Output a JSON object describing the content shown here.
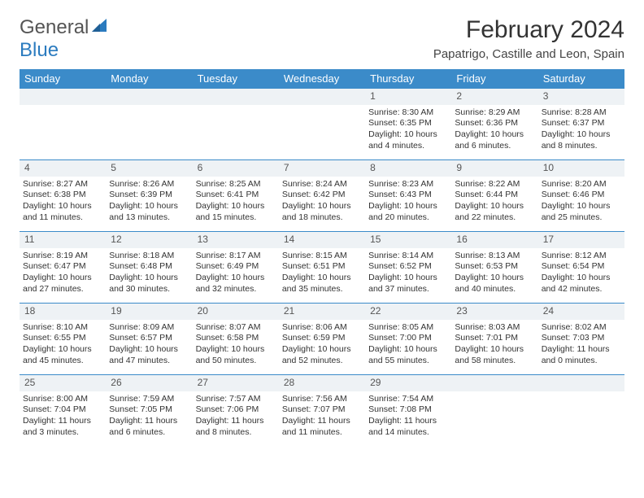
{
  "brand": {
    "name_part1": "General",
    "name_part2": "Blue"
  },
  "title": "February 2024",
  "location": "Papatrigo, Castille and Leon, Spain",
  "colors": {
    "header_bg": "#3b8bc9",
    "header_text": "#ffffff",
    "daynum_bg": "#eef2f5",
    "rule": "#3b8bc9",
    "body_text": "#333333",
    "brand_blue": "#2b7bbf",
    "brand_gray": "#555555",
    "page_bg": "#ffffff"
  },
  "weekdays": [
    "Sunday",
    "Monday",
    "Tuesday",
    "Wednesday",
    "Thursday",
    "Friday",
    "Saturday"
  ],
  "weeks": [
    [
      null,
      null,
      null,
      null,
      {
        "n": "1",
        "sunrise": "8:30 AM",
        "sunset": "6:35 PM",
        "dlh": "10",
        "dlm": "4"
      },
      {
        "n": "2",
        "sunrise": "8:29 AM",
        "sunset": "6:36 PM",
        "dlh": "10",
        "dlm": "6"
      },
      {
        "n": "3",
        "sunrise": "8:28 AM",
        "sunset": "6:37 PM",
        "dlh": "10",
        "dlm": "8"
      }
    ],
    [
      {
        "n": "4",
        "sunrise": "8:27 AM",
        "sunset": "6:38 PM",
        "dlh": "10",
        "dlm": "11"
      },
      {
        "n": "5",
        "sunrise": "8:26 AM",
        "sunset": "6:39 PM",
        "dlh": "10",
        "dlm": "13"
      },
      {
        "n": "6",
        "sunrise": "8:25 AM",
        "sunset": "6:41 PM",
        "dlh": "10",
        "dlm": "15"
      },
      {
        "n": "7",
        "sunrise": "8:24 AM",
        "sunset": "6:42 PM",
        "dlh": "10",
        "dlm": "18"
      },
      {
        "n": "8",
        "sunrise": "8:23 AM",
        "sunset": "6:43 PM",
        "dlh": "10",
        "dlm": "20"
      },
      {
        "n": "9",
        "sunrise": "8:22 AM",
        "sunset": "6:44 PM",
        "dlh": "10",
        "dlm": "22"
      },
      {
        "n": "10",
        "sunrise": "8:20 AM",
        "sunset": "6:46 PM",
        "dlh": "10",
        "dlm": "25"
      }
    ],
    [
      {
        "n": "11",
        "sunrise": "8:19 AM",
        "sunset": "6:47 PM",
        "dlh": "10",
        "dlm": "27"
      },
      {
        "n": "12",
        "sunrise": "8:18 AM",
        "sunset": "6:48 PM",
        "dlh": "10",
        "dlm": "30"
      },
      {
        "n": "13",
        "sunrise": "8:17 AM",
        "sunset": "6:49 PM",
        "dlh": "10",
        "dlm": "32"
      },
      {
        "n": "14",
        "sunrise": "8:15 AM",
        "sunset": "6:51 PM",
        "dlh": "10",
        "dlm": "35"
      },
      {
        "n": "15",
        "sunrise": "8:14 AM",
        "sunset": "6:52 PM",
        "dlh": "10",
        "dlm": "37"
      },
      {
        "n": "16",
        "sunrise": "8:13 AM",
        "sunset": "6:53 PM",
        "dlh": "10",
        "dlm": "40"
      },
      {
        "n": "17",
        "sunrise": "8:12 AM",
        "sunset": "6:54 PM",
        "dlh": "10",
        "dlm": "42"
      }
    ],
    [
      {
        "n": "18",
        "sunrise": "8:10 AM",
        "sunset": "6:55 PM",
        "dlh": "10",
        "dlm": "45"
      },
      {
        "n": "19",
        "sunrise": "8:09 AM",
        "sunset": "6:57 PM",
        "dlh": "10",
        "dlm": "47"
      },
      {
        "n": "20",
        "sunrise": "8:07 AM",
        "sunset": "6:58 PM",
        "dlh": "10",
        "dlm": "50"
      },
      {
        "n": "21",
        "sunrise": "8:06 AM",
        "sunset": "6:59 PM",
        "dlh": "10",
        "dlm": "52"
      },
      {
        "n": "22",
        "sunrise": "8:05 AM",
        "sunset": "7:00 PM",
        "dlh": "10",
        "dlm": "55"
      },
      {
        "n": "23",
        "sunrise": "8:03 AM",
        "sunset": "7:01 PM",
        "dlh": "10",
        "dlm": "58"
      },
      {
        "n": "24",
        "sunrise": "8:02 AM",
        "sunset": "7:03 PM",
        "dlh": "11",
        "dlm": "0"
      }
    ],
    [
      {
        "n": "25",
        "sunrise": "8:00 AM",
        "sunset": "7:04 PM",
        "dlh": "11",
        "dlm": "3"
      },
      {
        "n": "26",
        "sunrise": "7:59 AM",
        "sunset": "7:05 PM",
        "dlh": "11",
        "dlm": "6"
      },
      {
        "n": "27",
        "sunrise": "7:57 AM",
        "sunset": "7:06 PM",
        "dlh": "11",
        "dlm": "8"
      },
      {
        "n": "28",
        "sunrise": "7:56 AM",
        "sunset": "7:07 PM",
        "dlh": "11",
        "dlm": "11"
      },
      {
        "n": "29",
        "sunrise": "7:54 AM",
        "sunset": "7:08 PM",
        "dlh": "11",
        "dlm": "14"
      },
      null,
      null
    ]
  ],
  "labels": {
    "sunrise": "Sunrise:",
    "sunset": "Sunset:",
    "daylight": "Daylight:",
    "hours": "hours",
    "and": "and",
    "minutes": "minutes."
  }
}
